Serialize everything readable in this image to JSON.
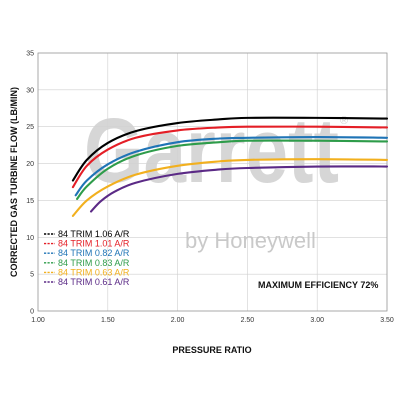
{
  "chart_data": {
    "type": "line",
    "title": "",
    "xlabel": "PRESSURE RATIO",
    "ylabel": "CORRECTED GAS TURBINE FLOW (LB/MIN)",
    "xlim": [
      1.0,
      3.5
    ],
    "ylim": [
      0,
      35
    ],
    "x_ticks": [
      "1.00",
      "1.50",
      "2.00",
      "2.50",
      "3.00",
      "3.50"
    ],
    "y_ticks": [
      "0",
      "5",
      "10",
      "15",
      "20",
      "25",
      "30",
      "35"
    ],
    "grid": true,
    "legend_placement": "bottom-left",
    "annotation": "MAXIMUM EFFICIENCY 72%",
    "watermark": {
      "brand": "Garrett",
      "subtitle": "by Honeywell",
      "registered": "®"
    },
    "series": [
      {
        "name": "84 TRIM 1.06 A/R",
        "color": "#000000",
        "x": [
          1.25,
          1.35,
          1.5,
          1.7,
          2.0,
          2.3,
          2.5,
          3.0,
          3.5
        ],
        "y": [
          17.7,
          20.5,
          22.8,
          24.4,
          25.5,
          26.0,
          26.2,
          26.2,
          26.1
        ]
      },
      {
        "name": "84 TRIM 1.01 A/R",
        "color": "#e41e26",
        "x": [
          1.25,
          1.35,
          1.5,
          1.7,
          2.0,
          2.3,
          2.5,
          3.0,
          3.5
        ],
        "y": [
          16.8,
          19.7,
          21.9,
          23.5,
          24.5,
          24.9,
          25.0,
          25.0,
          24.9
        ]
      },
      {
        "name": "84 TRIM 0.82 A/R",
        "color": "#1f74b6",
        "x": [
          1.27,
          1.35,
          1.5,
          1.7,
          2.0,
          2.3,
          2.5,
          3.0,
          3.5
        ],
        "y": [
          15.7,
          17.7,
          19.9,
          21.6,
          22.9,
          23.4,
          23.5,
          23.6,
          23.5
        ]
      },
      {
        "name": "84 TRIM 0.83 A/R",
        "color": "#2e9c4a",
        "x": [
          1.28,
          1.35,
          1.5,
          1.7,
          2.0,
          2.3,
          2.5,
          3.0,
          3.5
        ],
        "y": [
          15.2,
          16.9,
          19.3,
          21.1,
          22.4,
          22.9,
          23.1,
          23.1,
          23.0
        ]
      },
      {
        "name": "84 TRIM 0.63 A/R",
        "color": "#f2b01e",
        "x": [
          1.25,
          1.35,
          1.5,
          1.7,
          2.0,
          2.3,
          2.5,
          3.0,
          3.5
        ],
        "y": [
          12.9,
          15.0,
          16.9,
          18.5,
          19.7,
          20.3,
          20.5,
          20.6,
          20.5
        ]
      },
      {
        "name": "84 TRIM 0.61 A/R",
        "color": "#5b2a86",
        "x": [
          1.38,
          1.45,
          1.55,
          1.7,
          2.0,
          2.3,
          2.5,
          3.0,
          3.5
        ],
        "y": [
          13.5,
          14.9,
          16.2,
          17.4,
          18.6,
          19.2,
          19.4,
          19.6,
          19.6
        ]
      }
    ]
  }
}
